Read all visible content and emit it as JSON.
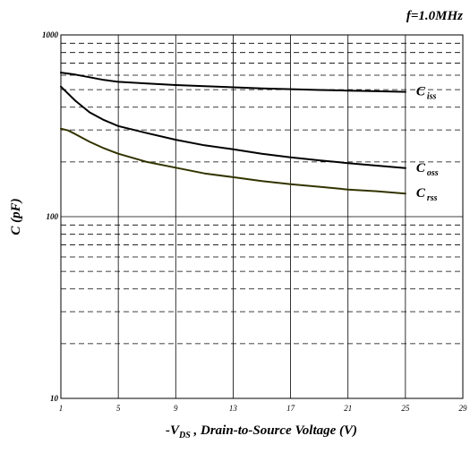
{
  "chart_data": {
    "type": "line",
    "annotation": "f=1.0MHz",
    "xlabel_prefix": "-V",
    "xlabel_sub": "DS",
    "xlabel_rest": " , Drain-to-Source Voltage (V)",
    "ylabel": "C (pF)",
    "xlim": [
      1,
      29
    ],
    "ylim": [
      10,
      1000
    ],
    "yscale": "log",
    "grid": true,
    "x_ticks": [
      "1",
      "5",
      "9",
      "13",
      "17",
      "21",
      "25",
      "29"
    ],
    "y_ticks": [
      "1000",
      "100",
      "10"
    ],
    "series": [
      {
        "name_main": "C",
        "name_sub": "iss",
        "color": "#000000",
        "x": [
          1,
          2,
          3,
          4,
          5,
          7,
          9,
          11,
          13,
          15,
          17,
          19,
          21,
          23,
          25
        ],
        "y": [
          620,
          605,
          585,
          565,
          552,
          540,
          530,
          522,
          515,
          508,
          503,
          498,
          494,
          490,
          486
        ]
      },
      {
        "name_main": "C",
        "name_sub": "oss",
        "color": "#000000",
        "x": [
          1,
          1.5,
          2,
          3,
          4,
          5,
          7,
          9,
          11,
          13,
          15,
          17,
          19,
          21,
          23,
          25
        ],
        "y": [
          520,
          475,
          435,
          375,
          340,
          315,
          288,
          265,
          247,
          235,
          222,
          212,
          204,
          197,
          191,
          185
        ]
      },
      {
        "name_main": "C",
        "name_sub": "rss",
        "color": "#333300",
        "x": [
          1,
          1.5,
          2,
          3,
          4,
          5,
          7,
          9,
          11,
          13,
          15,
          17,
          19,
          21,
          23,
          25
        ],
        "y": [
          305,
          298,
          285,
          258,
          238,
          222,
          200,
          186,
          173,
          165,
          157,
          151,
          146,
          141,
          138,
          134
        ]
      }
    ]
  }
}
